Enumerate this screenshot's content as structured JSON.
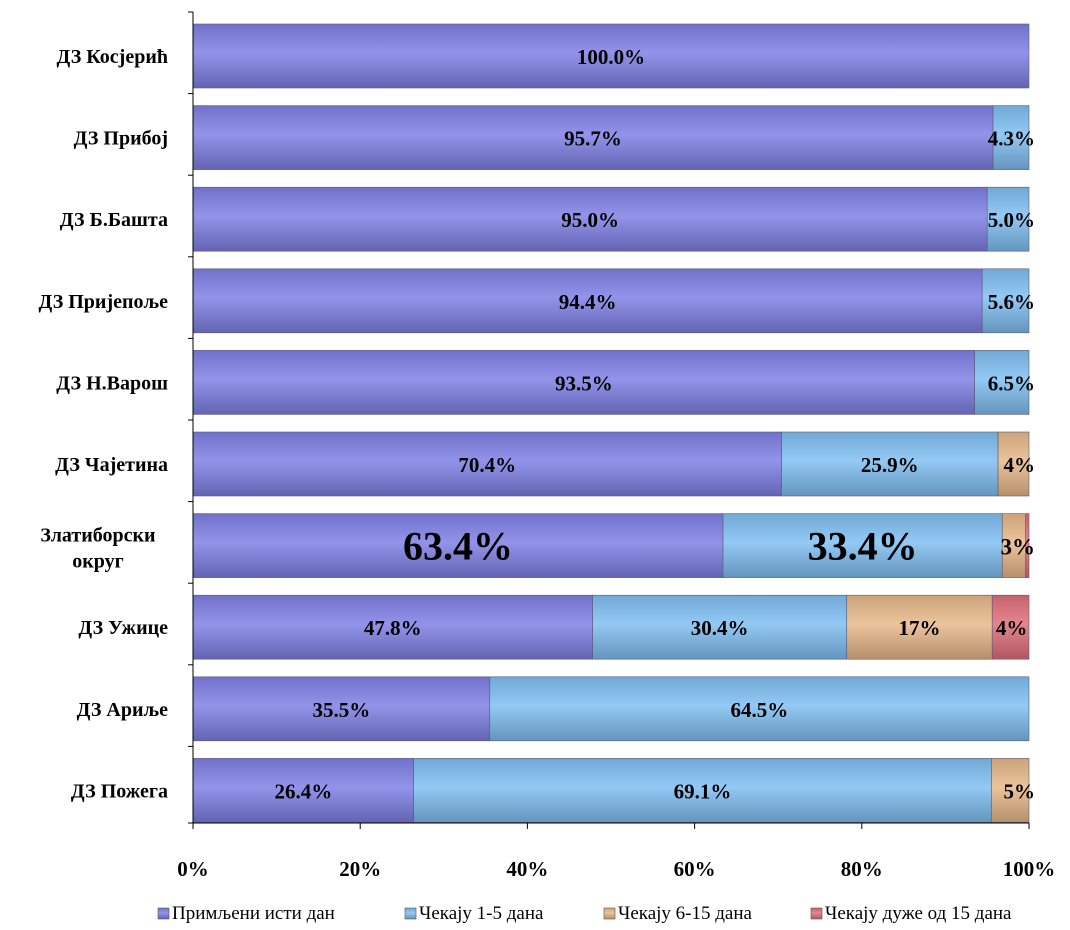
{
  "chart_data": {
    "type": "bar",
    "orientation": "horizontal",
    "stacked": "percent",
    "categories": [
      "ДЗ Косјерић",
      "ДЗ Прибој",
      "ДЗ Б.Башта",
      "ДЗ Пријепоље",
      "ДЗ Н.Варош",
      "ДЗ Чајетина",
      "Златиборски округ",
      "ДЗ Ужице",
      "ДЗ Ариље",
      "ДЗ Пожега"
    ],
    "series": [
      {
        "name": "Примљени исти дан",
        "color": "#8080e6",
        "values": [
          100.0,
          95.7,
          95.0,
          94.4,
          93.5,
          70.4,
          63.4,
          47.8,
          35.5,
          26.4
        ],
        "labels": [
          "100.0%",
          "95.7%",
          "95.0%",
          "94.4%",
          "93.5%",
          "70.4%",
          "63.4%",
          "47.8%",
          "35.5%",
          "26.4%"
        ]
      },
      {
        "name": "Чекају 1-5 дана",
        "color": "#80bff2",
        "values": [
          0,
          4.3,
          5.0,
          5.6,
          6.5,
          25.9,
          33.4,
          30.4,
          64.5,
          69.1
        ],
        "labels": [
          "",
          "4.3%",
          "5.0%",
          "5.6%",
          "6.5%",
          "25.9%",
          "33.4%",
          "30.4%",
          "64.5%",
          "69.1%"
        ]
      },
      {
        "name": "Чекају 6-15 дана",
        "color": "#e8b98a",
        "values": [
          0,
          0,
          0,
          0,
          0,
          3.7,
          2.8,
          17.4,
          0,
          4.5
        ],
        "labels": [
          "",
          "",
          "",
          "",
          "",
          "4%",
          "3%",
          "17%",
          "",
          "5%"
        ]
      },
      {
        "name": "Чекају дуже од 15 дана",
        "color": "#e0707a",
        "values": [
          0,
          0,
          0,
          0,
          0,
          0,
          0.4,
          4.4,
          0,
          0
        ],
        "labels": [
          "",
          "",
          "",
          "",
          "",
          "",
          "",
          "4%",
          "",
          ""
        ]
      }
    ],
    "xlim": [
      0,
      100
    ],
    "x_ticks": [
      "0%",
      "20%",
      "40%",
      "60%",
      "80%",
      "100%"
    ],
    "legend": "bottom",
    "grid": false,
    "emphasized_category": "Златиборски округ"
  }
}
